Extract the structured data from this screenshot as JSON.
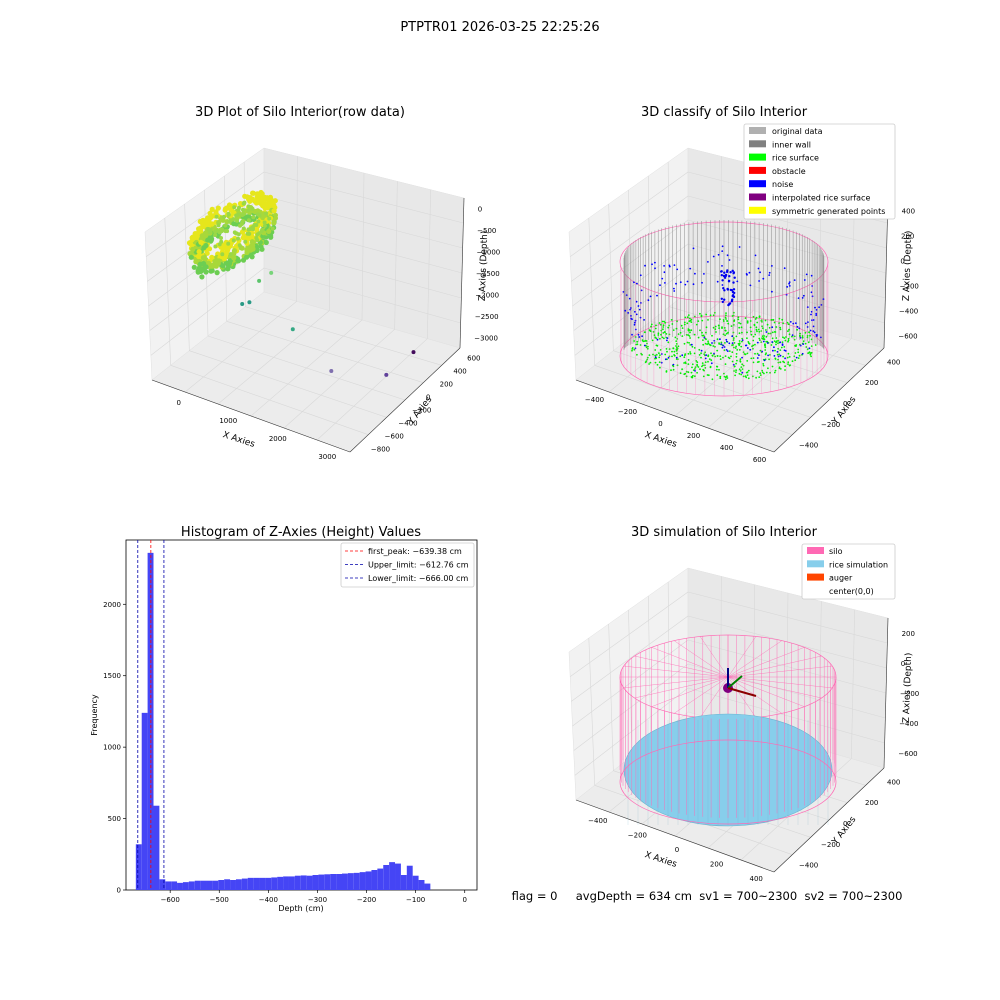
{
  "figure": {
    "suptitle": "PTPTR01 2026-03-25 22:25:26",
    "status_line": "flag = 0     avgDepth = 634 cm  sv1 = 700~2300  sv2 = 700~2300"
  },
  "chart_data": [
    {
      "type": "scatter",
      "projection": "3d",
      "title": "3D Plot of Silo Interior(row data)",
      "xlabel": "X Axies",
      "ylabel": "Y Axies",
      "zlabel": "Z Axies (Depth)",
      "xticks": [
        0,
        1000,
        2000,
        3000
      ],
      "yticks": [
        -800,
        -600,
        -400,
        -200,
        0,
        200,
        400,
        600
      ],
      "zticks": [
        -3000,
        -2500,
        -2000,
        -1500,
        -1000,
        -500,
        0
      ],
      "xlim": [
        -600,
        3500
      ],
      "ylim": [
        -900,
        650
      ],
      "zlim": [
        -3300,
        200
      ],
      "main_cluster": {
        "x_range": [
          -400,
          600
        ],
        "y_range": [
          -500,
          500
        ],
        "z_range": [
          -700,
          0
        ],
        "colormap": "yellow-green"
      },
      "outliers": [
        {
          "x": 1200,
          "y": 200,
          "z": -600,
          "color": "#78d47a"
        },
        {
          "x": 800,
          "y": 100,
          "z": -1100,
          "color": "#5cc46c"
        },
        {
          "x": 1500,
          "y": 100,
          "z": -2000,
          "color": "#35a884"
        },
        {
          "x": 300,
          "y": -100,
          "z": -2100,
          "color": "#2a9a86"
        },
        {
          "x": 0,
          "y": -200,
          "z": -2400,
          "color": "#2a9a86"
        },
        {
          "x": 2300,
          "y": 100,
          "z": -2700,
          "color": "#7f6fae"
        },
        {
          "x": 3000,
          "y": -200,
          "z": -3000,
          "color": "#60409a"
        },
        {
          "x": 2900,
          "y": -650,
          "z": -3200,
          "color": "#440c5c"
        }
      ]
    },
    {
      "type": "scatter",
      "projection": "3d",
      "title": "3D classify of Silo Interior",
      "xlabel": "X Axies",
      "ylabel": "Y Axies",
      "zlabel": "Z Axies (Depth)",
      "xticks": [
        -400,
        -200,
        0,
        200,
        400,
        600
      ],
      "yticks": [
        -400,
        -200,
        0,
        200,
        400
      ],
      "zticks": [
        -600,
        -400,
        -200,
        0,
        200,
        400
      ],
      "legend": {
        "placement": "top-right",
        "entries": [
          {
            "label": "original data",
            "color": "#b0b0b0"
          },
          {
            "label": "inner wall",
            "color": "#808080"
          },
          {
            "label": "rice surface",
            "color": "#00ff00"
          },
          {
            "label": "obstacle",
            "color": "#ff0000"
          },
          {
            "label": "noise",
            "color": "#0000ff"
          },
          {
            "label": "interpolated rice surface",
            "color": "#800080"
          },
          {
            "label": "symmetric generated points",
            "color": "#ffff00"
          }
        ]
      },
      "silo": {
        "radius": 500,
        "z_top": 200,
        "z_bottom": -640,
        "outline_color": "#ff69b4"
      },
      "rice_surface_depth": -639.38
    },
    {
      "type": "histogram",
      "title": "Histogram of Z-Axies (Height) Values",
      "xlabel": "Depth (cm)",
      "ylabel": "Frequency",
      "xlim": [
        -690,
        25
      ],
      "ylim": [
        0,
        2450
      ],
      "xticks": [
        -600,
        -500,
        -400,
        -300,
        -200,
        -100,
        0
      ],
      "yticks": [
        0,
        500,
        1000,
        1500,
        2000
      ],
      "bar_color": "#4545f5",
      "bin_width": 12,
      "bins_start": -670,
      "counts": [
        320,
        1240,
        2360,
        590,
        75,
        60,
        60,
        50,
        55,
        60,
        65,
        65,
        65,
        65,
        70,
        75,
        70,
        75,
        80,
        85,
        85,
        85,
        85,
        88,
        92,
        95,
        95,
        100,
        102,
        100,
        105,
        108,
        110,
        112,
        112,
        115,
        118,
        120,
        125,
        130,
        140,
        150,
        175,
        195,
        185,
        105,
        170,
        100,
        70,
        45
      ],
      "lines": [
        {
          "label": "first_peak: -639.38 cm",
          "value": -639.38,
          "color": "#ff0000"
        },
        {
          "label": "Upper_limit: -612.76 cm",
          "value": -612.76,
          "color": "#0000aa"
        },
        {
          "label": "Lower_limit: -666.00 cm",
          "value": -666.0,
          "color": "#0000aa"
        }
      ],
      "legend_placement": "top-right"
    },
    {
      "type": "surface",
      "projection": "3d",
      "title": "3D simulation of Silo Interior",
      "xlabel": "X Axies",
      "ylabel": "Y Axies",
      "zlabel": "Z Axies (Depth)",
      "xticks": [
        -400,
        -200,
        0,
        200,
        400
      ],
      "yticks": [
        -400,
        -200,
        0,
        200,
        400
      ],
      "zticks": [
        -600,
        -400,
        -200,
        0,
        200
      ],
      "legend": {
        "placement": "top-right",
        "entries": [
          {
            "label": "silo",
            "color": "#ff69b4"
          },
          {
            "label": "rice simulation",
            "color": "#87ceeb"
          },
          {
            "label": "auger",
            "color": "#ff4500"
          },
          {
            "label": "center(0,0)",
            "color": ""
          }
        ]
      },
      "silo": {
        "radius": 500,
        "z_top": 300,
        "z_bottom": -640,
        "outline_color": "#ff69b4"
      },
      "rice_surface_depth": -634,
      "rice_color": "#87ceeb"
    }
  ]
}
